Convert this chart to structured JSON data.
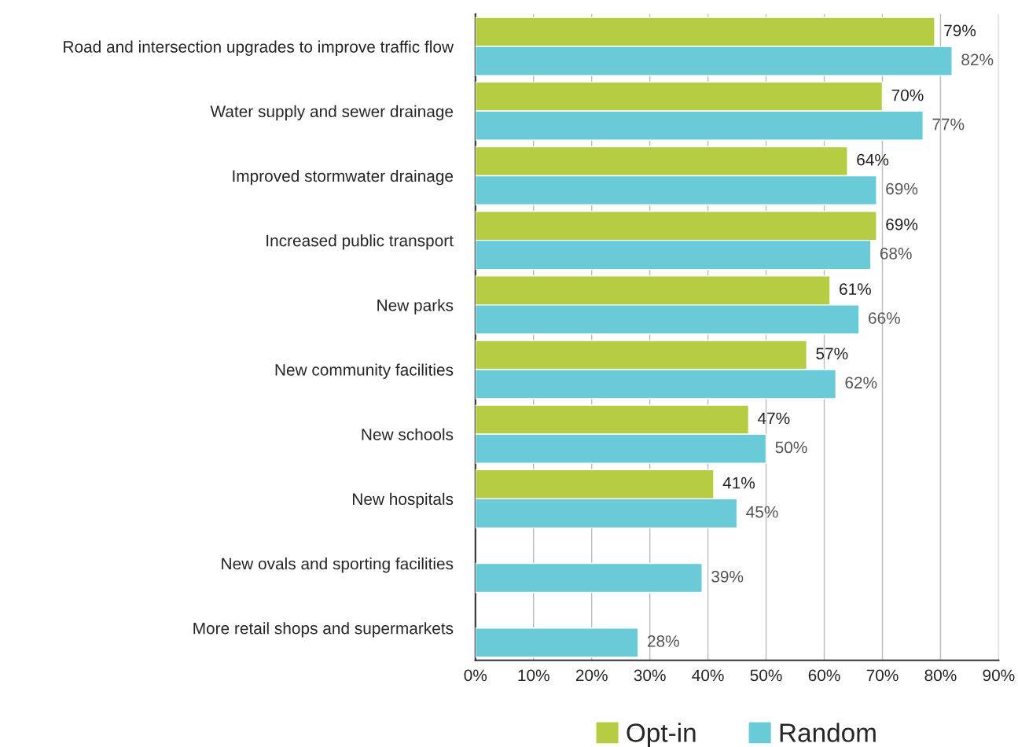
{
  "chart_data": {
    "type": "bar",
    "orientation": "horizontal",
    "categories": [
      "Road and intersection upgrades to improve traffic flow",
      "Water supply and sewer drainage",
      "Improved stormwater drainage",
      "Increased public transport",
      "New parks",
      "New community facilities",
      "New schools",
      "New hospitals",
      "New ovals and sporting facilities",
      "More retail shops and supermarkets"
    ],
    "series": [
      {
        "name": "Opt-in",
        "color": "#b5cc43",
        "values": [
          79,
          70,
          64,
          69,
          61,
          57,
          47,
          41,
          null,
          null
        ],
        "value_labels": [
          "79%",
          "70%",
          "64%",
          "69%",
          "61%",
          "57%",
          "47%",
          "41%",
          null,
          null
        ]
      },
      {
        "name": "Random",
        "color": "#68cbd7",
        "values": [
          82,
          77,
          69,
          68,
          66,
          62,
          50,
          45,
          39,
          28
        ],
        "value_labels": [
          "82%",
          "77%",
          "69%",
          "68%",
          "66%",
          "62%",
          "50%",
          "45%",
          "39%",
          "28%"
        ]
      }
    ],
    "xlim": [
      0,
      90
    ],
    "xticks": [
      {
        "value": 0,
        "label": "0%"
      },
      {
        "value": 10,
        "label": "10%"
      },
      {
        "value": 20,
        "label": "20%"
      },
      {
        "value": 30,
        "label": "30%"
      },
      {
        "value": 40,
        "label": "40%"
      },
      {
        "value": 50,
        "label": "50%"
      },
      {
        "value": 60,
        "label": "60%"
      },
      {
        "value": 70,
        "label": "70%"
      },
      {
        "value": 80,
        "label": "80%"
      },
      {
        "value": 90,
        "label": "90%"
      }
    ],
    "grid": "x",
    "legend": "bottom"
  }
}
